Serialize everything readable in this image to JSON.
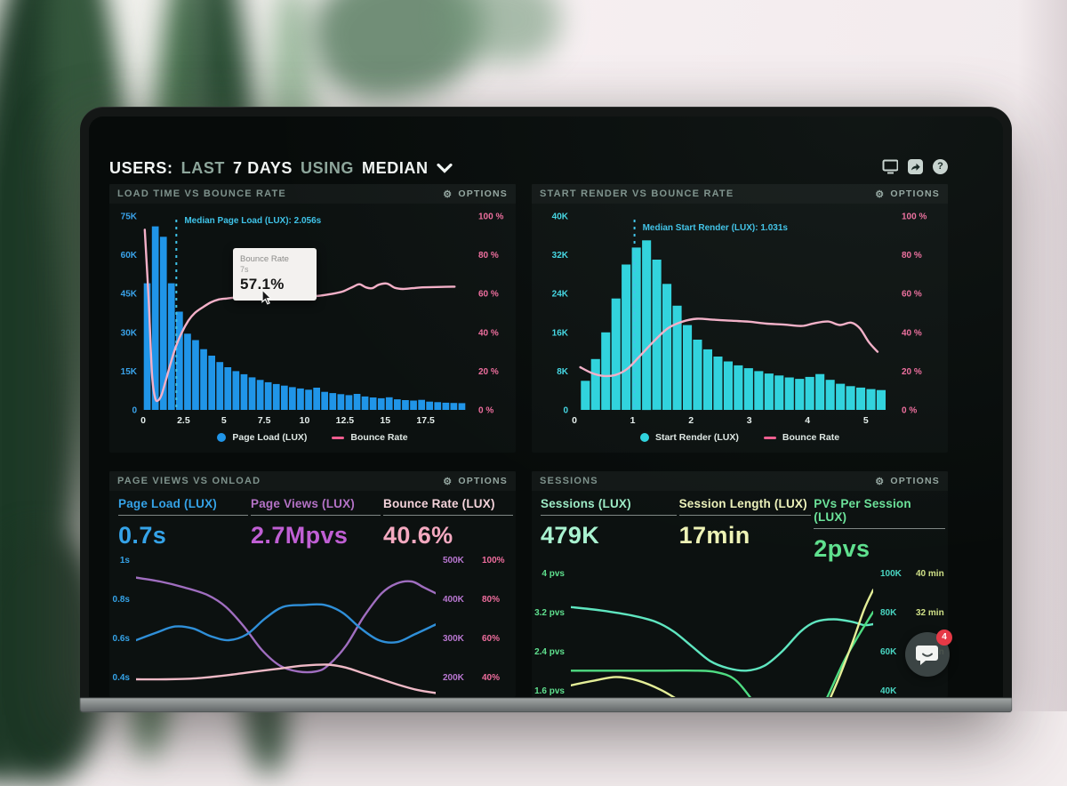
{
  "photo": {
    "wall_color": "#f3edee",
    "plant_dark": "#22402a",
    "plant_mid": "#3a6144",
    "plant_light": "#7fa883"
  },
  "header": {
    "parts": [
      {
        "text": "USERS:",
        "style": "strong"
      },
      {
        "text": "LAST",
        "style": "dim"
      },
      {
        "text": "7 DAYS",
        "style": "strong"
      },
      {
        "text": "USING",
        "style": "dim"
      },
      {
        "text": "MEDIAN",
        "style": "strong"
      }
    ],
    "icons": [
      "display-icon",
      "share-icon",
      "help-icon"
    ],
    "help_glyph": "?"
  },
  "panels_common": {
    "options_label": "OPTIONS",
    "gear_icon": "⚙"
  },
  "chat_widget": {
    "badge_count": "4",
    "icon": "chat-bubble-icon"
  },
  "chart_data": [
    {
      "type": "bar",
      "title": "LOAD TIME VS BOUNCE RATE",
      "x_range": [
        0,
        20
      ],
      "x_ticks": [
        "0",
        "2.5",
        "5",
        "7.5",
        "10",
        "12.5",
        "15",
        "17.5"
      ],
      "x_tick_color": "#e6efec",
      "y_left": {
        "labels": [
          "75K",
          "60K",
          "45K",
          "30K",
          "15K",
          "0"
        ],
        "max": 75000,
        "color": "#3aa3ea"
      },
      "y_right": {
        "labels": [
          "100 %",
          "80 %",
          "60 %",
          "40 %",
          "20 %",
          "0 %"
        ],
        "max": 100,
        "color": "#ee6d9d"
      },
      "bar_series_name": "Page Load (LUX)",
      "bar_color": "#2095e8",
      "bars_x_start": 0,
      "bar_step": 0.5,
      "bar_values_k": [
        49,
        71,
        67,
        49,
        38,
        29.5,
        27,
        23.5,
        21,
        18.5,
        16.5,
        15,
        13.8,
        12.6,
        11.6,
        10.7,
        10,
        9.4,
        8.8,
        8.3,
        7.8,
        8.6,
        7,
        6.5,
        6.1,
        5.7,
        6.2,
        5.2,
        4.8,
        4.5,
        4.9,
        4.1,
        3.8,
        3.6,
        3.9,
        3.2,
        3,
        2.8,
        2.7,
        2.6
      ],
      "line_series_name": "Bounce Rate",
      "line_color": "#f4b0c8",
      "line_points_pct": [
        [
          0.1,
          93
        ],
        [
          0.35,
          55
        ],
        [
          0.55,
          18
        ],
        [
          0.75,
          6
        ],
        [
          0.95,
          5
        ],
        [
          1.15,
          8
        ],
        [
          1.4,
          15
        ],
        [
          1.7,
          24
        ],
        [
          2,
          32
        ],
        [
          2.4,
          40
        ],
        [
          2.8,
          46
        ],
        [
          3.2,
          50
        ],
        [
          3.7,
          53
        ],
        [
          4.2,
          55.5
        ],
        [
          4.7,
          57
        ],
        [
          5.2,
          57.5
        ],
        [
          5.8,
          58
        ],
        [
          6.3,
          58
        ],
        [
          6.8,
          57.3
        ],
        [
          7,
          57.1
        ],
        [
          7.6,
          57.8
        ],
        [
          8.2,
          58.3
        ],
        [
          8.8,
          58
        ],
        [
          9.4,
          57.6
        ],
        [
          10,
          58
        ],
        [
          10.6,
          58.6
        ],
        [
          11.2,
          59.2
        ],
        [
          11.8,
          60
        ],
        [
          12.4,
          61.2
        ],
        [
          13,
          63.5
        ],
        [
          13.4,
          64.8
        ],
        [
          13.8,
          63.2
        ],
        [
          14.2,
          62.8
        ],
        [
          14.6,
          64.6
        ],
        [
          15.1,
          65.2
        ],
        [
          15.6,
          63
        ],
        [
          16.1,
          62.4
        ],
        [
          16.7,
          62.8
        ],
        [
          17.3,
          63.2
        ],
        [
          18.2,
          63.4
        ],
        [
          19.3,
          63.6
        ]
      ],
      "median": {
        "x": 2.056,
        "label": "Median Page Load (LUX): 2.056s",
        "color": "#3fc3e8"
      },
      "tooltip": {
        "title": "Bounce Rate",
        "subtitle": "7s",
        "value": "57.1%"
      },
      "legend": [
        {
          "swatch": "dot",
          "color": "#2095e8",
          "label": "Page Load (LUX)"
        },
        {
          "swatch": "line",
          "color": "#ef5d8f",
          "label": "Bounce Rate"
        }
      ]
    },
    {
      "type": "bar",
      "title": "START RENDER VS BOUNCE RATE",
      "x_range": [
        0,
        5.4
      ],
      "x_ticks": [
        "0",
        "1",
        "2",
        "3",
        "4",
        "5"
      ],
      "x_tick_color": "#e6efec",
      "y_left": {
        "labels": [
          "40K",
          "32K",
          "24K",
          "16K",
          "8K",
          "0"
        ],
        "max": 40000,
        "color": "#44d7e3"
      },
      "y_right": {
        "labels": [
          "100 %",
          "80 %",
          "60 %",
          "40 %",
          "20 %",
          "0 %"
        ],
        "max": 100,
        "color": "#ee6d9d"
      },
      "bar_series_name": "Start Render (LUX)",
      "bar_color": "#2fd3dd",
      "bars_x_start": 0.1,
      "bar_step": 0.175,
      "bar_values_k": [
        6,
        10.5,
        16,
        23,
        30,
        33.5,
        35,
        31,
        26,
        21.5,
        17.5,
        14.5,
        12.5,
        11,
        10,
        9.2,
        8.6,
        8,
        7.5,
        7.1,
        6.7,
        6.4,
        6.8,
        7.4,
        6.2,
        5.4,
        4.9,
        4.6,
        4.3,
        4.1
      ],
      "line_series_name": "Bounce Rate",
      "line_color": "#f4b0c8",
      "line_points_pct": [
        [
          0.1,
          22
        ],
        [
          0.3,
          19
        ],
        [
          0.5,
          17.5
        ],
        [
          0.7,
          18
        ],
        [
          0.9,
          21
        ],
        [
          1.1,
          27
        ],
        [
          1.35,
          35
        ],
        [
          1.6,
          42
        ],
        [
          1.85,
          45.5
        ],
        [
          2.1,
          47
        ],
        [
          2.4,
          46.5
        ],
        [
          2.7,
          46
        ],
        [
          3,
          45.5
        ],
        [
          3.3,
          44.5
        ],
        [
          3.6,
          44
        ],
        [
          3.9,
          43.3
        ],
        [
          4.1,
          44.6
        ],
        [
          4.35,
          45.6
        ],
        [
          4.55,
          43.8
        ],
        [
          4.75,
          45
        ],
        [
          4.9,
          42
        ],
        [
          5.05,
          35
        ],
        [
          5.2,
          30
        ]
      ],
      "median": {
        "x": 1.031,
        "label": "Median Start Render (LUX): 1.031s",
        "color": "#3fc3e8"
      },
      "legend": [
        {
          "swatch": "dot",
          "color": "#2fd3dd",
          "label": "Start Render (LUX)"
        },
        {
          "swatch": "line",
          "color": "#ef5d8f",
          "label": "Bounce Rate"
        }
      ]
    },
    {
      "type": "line",
      "title": "PAGE VIEWS VS ONLOAD",
      "metrics": [
        {
          "label": "Page Load (LUX)",
          "value": "0.7s",
          "label_color": "#35a3e8",
          "value_color": "#35a3e8"
        },
        {
          "label": "Page Views (LUX)",
          "value": "2.7Mpvs",
          "label_color": "#b472c6",
          "value_color": "#c05fd4"
        },
        {
          "label": "Bounce Rate (LUX)",
          "value": "40.6%",
          "label_color": "#f3d2da",
          "value_color": "#f4a9c0"
        }
      ],
      "y_ticks": [
        1,
        0.8,
        0.6,
        0.4
      ],
      "y_left": {
        "labels": [
          "1s",
          "0.8s",
          "0.6s",
          "0.4s"
        ],
        "color": "#35a3e8"
      },
      "y_right_cols": [
        {
          "labels": [
            "500K",
            "400K",
            "300K",
            "200K"
          ],
          "color": "#b977d1"
        },
        {
          "labels": [
            "100%",
            "80%",
            "60%",
            "40%"
          ],
          "color": "#ee6d9d"
        }
      ],
      "series": [
        {
          "name": "Page Views",
          "color": "#a06ec0",
          "points": [
            [
              0,
              0.92
            ],
            [
              8,
              0.9
            ],
            [
              16,
              0.87
            ],
            [
              24,
              0.83
            ],
            [
              30,
              0.77
            ],
            [
              36,
              0.67
            ],
            [
              42,
              0.55
            ],
            [
              48,
              0.47
            ],
            [
              54,
              0.44
            ],
            [
              60,
              0.44
            ],
            [
              64,
              0.47
            ],
            [
              70,
              0.57
            ],
            [
              76,
              0.72
            ],
            [
              82,
              0.84
            ],
            [
              87,
              0.89
            ],
            [
              92,
              0.9
            ],
            [
              96,
              0.87
            ],
            [
              100,
              0.84
            ]
          ]
        },
        {
          "name": "Page Load",
          "color": "#2f8fd8",
          "points": [
            [
              0,
              0.6
            ],
            [
              7,
              0.64
            ],
            [
              13,
              0.67
            ],
            [
              19,
              0.66
            ],
            [
              25,
              0.62
            ],
            [
              31,
              0.6
            ],
            [
              37,
              0.63
            ],
            [
              43,
              0.71
            ],
            [
              49,
              0.77
            ],
            [
              56,
              0.78
            ],
            [
              63,
              0.78
            ],
            [
              69,
              0.74
            ],
            [
              75,
              0.66
            ],
            [
              81,
              0.6
            ],
            [
              87,
              0.59
            ],
            [
              93,
              0.63
            ],
            [
              100,
              0.68
            ]
          ]
        },
        {
          "name": "Bounce Rate",
          "color": "#efb9c6",
          "points": [
            [
              0,
              0.4
            ],
            [
              10,
              0.4
            ],
            [
              20,
              0.405
            ],
            [
              30,
              0.42
            ],
            [
              40,
              0.44
            ],
            [
              48,
              0.455
            ],
            [
              56,
              0.47
            ],
            [
              64,
              0.475
            ],
            [
              70,
              0.46
            ],
            [
              76,
              0.43
            ],
            [
              82,
              0.4
            ],
            [
              88,
              0.37
            ],
            [
              94,
              0.345
            ],
            [
              100,
              0.33
            ]
          ]
        }
      ]
    },
    {
      "type": "line",
      "title": "SESSIONS",
      "metrics": [
        {
          "label": "Sessions (LUX)",
          "value": "479K",
          "label_color": "#9debc6",
          "value_color": "#a9f2d0"
        },
        {
          "label": "Session Length (LUX)",
          "value": "17min",
          "label_color": "#edf2bb",
          "value_color": "#eef3b6"
        },
        {
          "label": "PVs Per Session (LUX)",
          "value": "2pvs",
          "label_color": "#6ce39a",
          "value_color": "#5fe08e"
        }
      ],
      "y_ticks": [
        4,
        3.2,
        2.4,
        1.6
      ],
      "y_left": {
        "labels": [
          "4 pvs",
          "3.2 pvs",
          "2.4 pvs",
          "1.6 pvs"
        ],
        "color": "#5fe08e"
      },
      "y_right_cols": [
        {
          "labels": [
            "100K",
            "80K",
            "60K",
            "40K"
          ],
          "color": "#49d6c2"
        },
        {
          "labels": [
            "40 min",
            "32 min",
            "24 min",
            ""
          ],
          "color": "#cfe087"
        }
      ],
      "series": [
        {
          "name": "Sessions",
          "color": "#5fe6c0",
          "points": [
            [
              0,
              3.35
            ],
            [
              10,
              3.28
            ],
            [
              20,
              3.18
            ],
            [
              28,
              3.05
            ],
            [
              34,
              2.85
            ],
            [
              40,
              2.55
            ],
            [
              46,
              2.25
            ],
            [
              52,
              2.1
            ],
            [
              58,
              2.05
            ],
            [
              64,
              2.15
            ],
            [
              70,
              2.45
            ],
            [
              76,
              2.85
            ],
            [
              81,
              3.05
            ],
            [
              87,
              3.1
            ],
            [
              93,
              3.05
            ],
            [
              97,
              2.98
            ],
            [
              100,
              3
            ]
          ]
        },
        {
          "name": "PVs Per Session",
          "color": "#4fdc82",
          "points": [
            [
              0,
              2.05
            ],
            [
              15,
              2.05
            ],
            [
              30,
              2.05
            ],
            [
              42,
              2.05
            ],
            [
              48,
              2.02
            ],
            [
              54,
              1.88
            ],
            [
              60,
              1.45
            ],
            [
              66,
              0.9
            ],
            [
              72,
              0.5
            ],
            [
              78,
              0.7
            ],
            [
              84,
              1.4
            ],
            [
              90,
              2.2
            ],
            [
              95,
              2.75
            ],
            [
              100,
              3.25
            ]
          ]
        },
        {
          "name": "Session Length",
          "color": "#e4ee97",
          "points": [
            [
              0,
              1.75
            ],
            [
              8,
              1.85
            ],
            [
              15,
              1.92
            ],
            [
              22,
              1.85
            ],
            [
              30,
              1.65
            ],
            [
              38,
              1.35
            ],
            [
              46,
              1
            ],
            [
              52,
              0.7
            ],
            [
              58,
              0.45
            ],
            [
              64,
              0.2
            ],
            [
              70,
              0.15
            ],
            [
              76,
              0.4
            ],
            [
              82,
              1
            ],
            [
              88,
              1.8
            ],
            [
              93,
              2.6
            ],
            [
              97,
              3.3
            ],
            [
              100,
              3.7
            ]
          ]
        }
      ]
    }
  ]
}
